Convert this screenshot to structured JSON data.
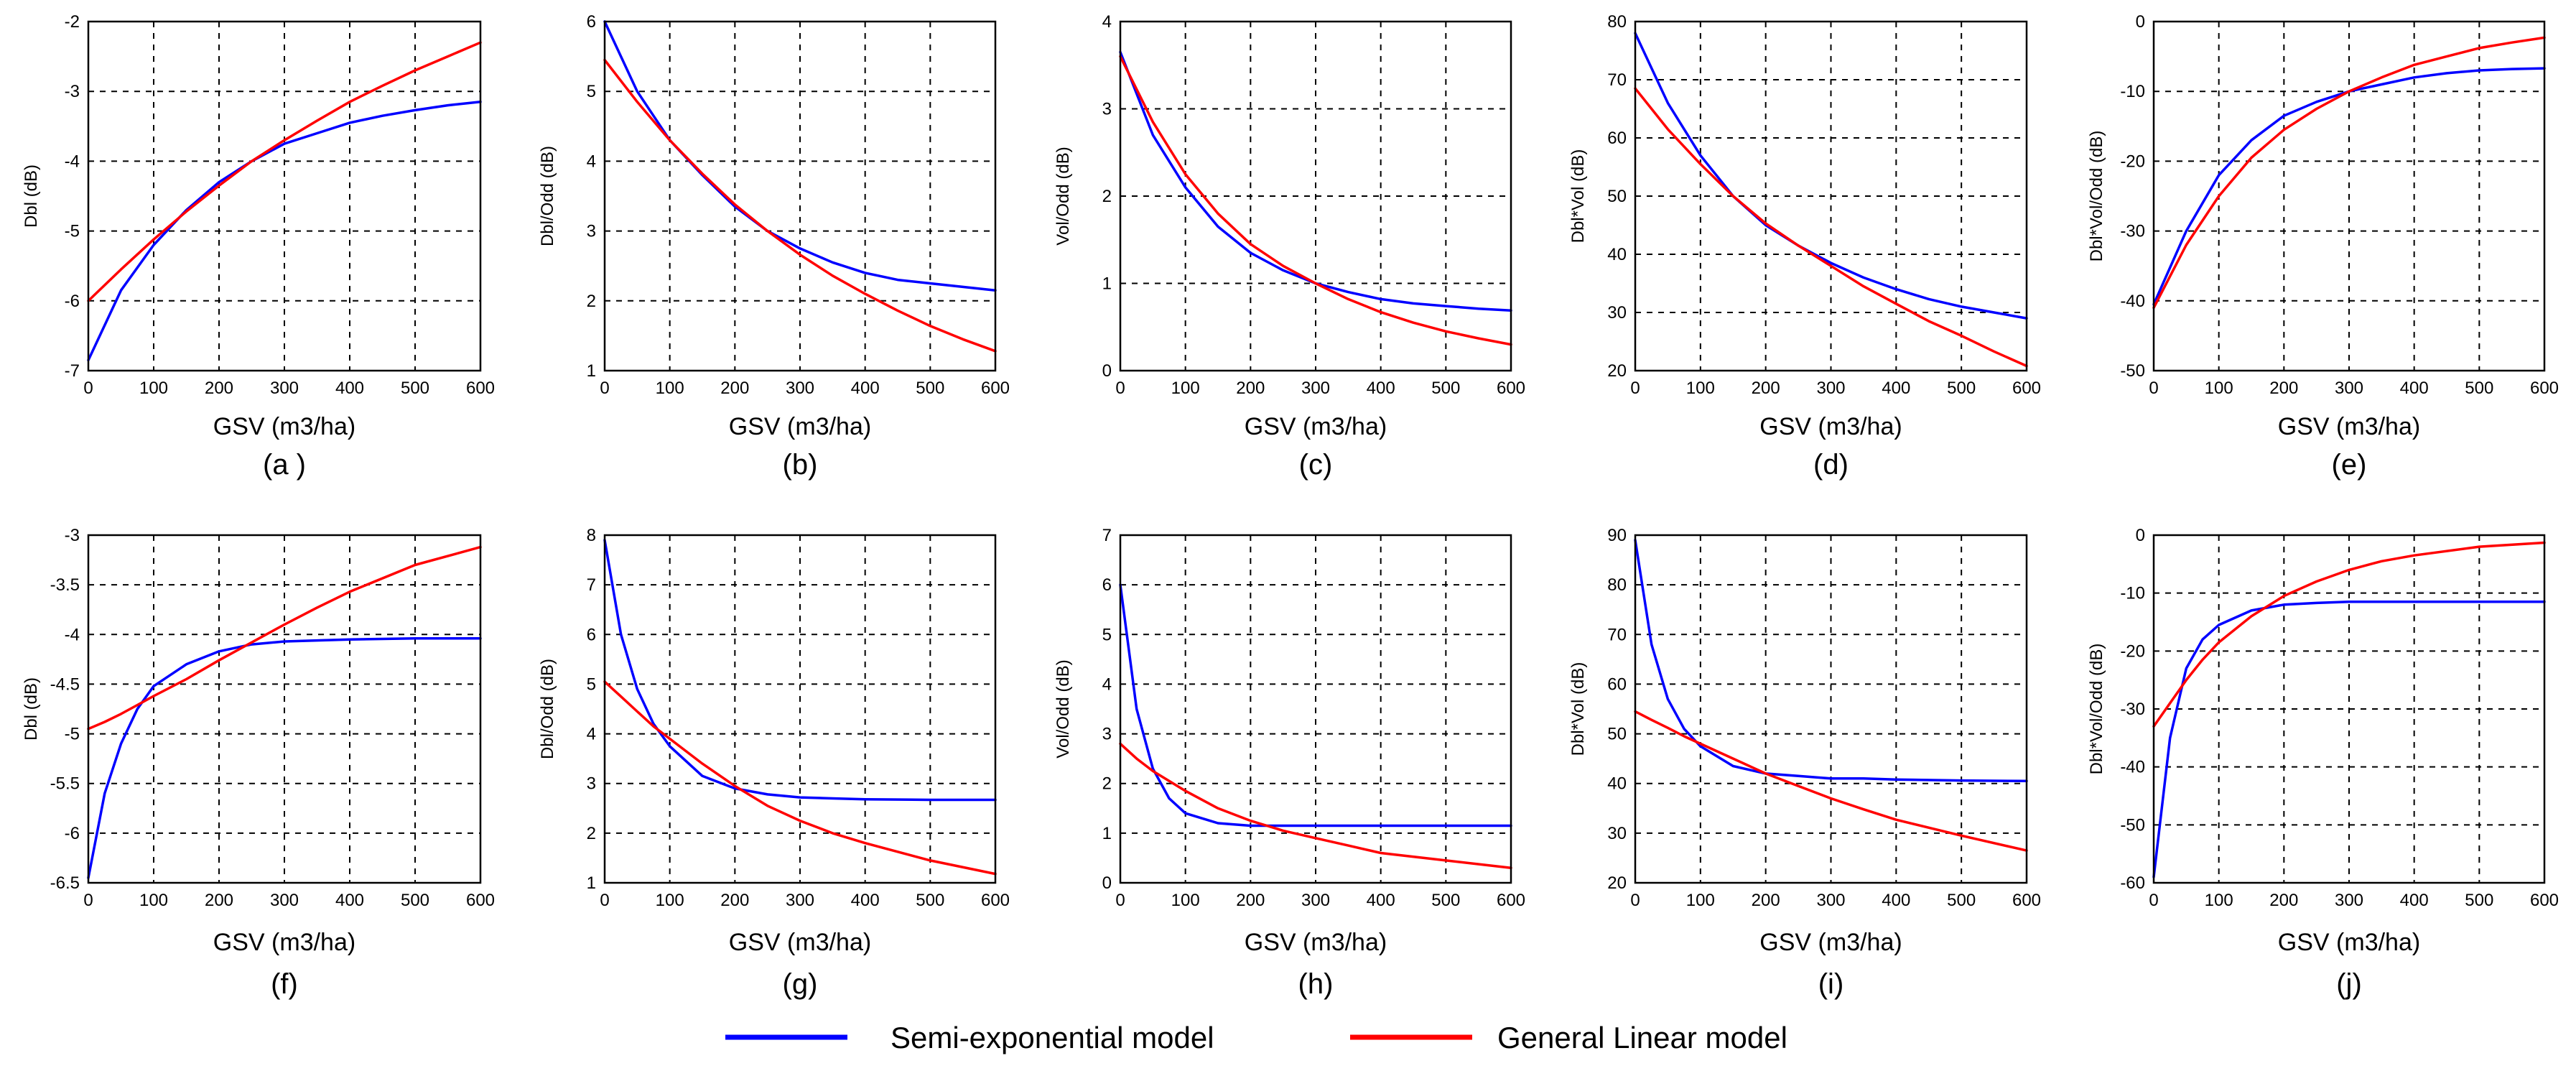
{
  "legend": {
    "semi": "Semi-exponential model",
    "linear": "General  Linear model"
  },
  "colors": {
    "semi": "#0000ff",
    "linear": "#ff0000"
  },
  "chart_data": [
    {
      "type": "line",
      "caption": "(a )",
      "xlabel": "GSV  (m3/ha)",
      "ylabel": "Dbl (dB)",
      "xlim": [
        0,
        600
      ],
      "ylim": [
        -7,
        -2
      ],
      "xticks": [
        0,
        100,
        200,
        300,
        400,
        500,
        600
      ],
      "yticks": [
        -7,
        -6,
        -5,
        -4,
        -3,
        -2
      ],
      "grid": true,
      "x": [
        0,
        50,
        100,
        150,
        200,
        250,
        300,
        350,
        400,
        450,
        500,
        550,
        600
      ],
      "series": [
        {
          "name": "Semi-exponential model",
          "values": [
            -6.85,
            -5.85,
            -5.2,
            -4.7,
            -4.3,
            -4.0,
            -3.75,
            -3.6,
            -3.45,
            -3.35,
            -3.27,
            -3.2,
            -3.15
          ]
        },
        {
          "name": "General  Linear model",
          "values": [
            -6.0,
            -5.55,
            -5.12,
            -4.72,
            -4.35,
            -4.0,
            -3.7,
            -3.42,
            -3.15,
            -2.92,
            -2.7,
            -2.5,
            -2.3
          ]
        }
      ]
    },
    {
      "type": "line",
      "caption": "(b)",
      "xlabel": "GSV  (m3/ha)",
      "ylabel": "Dbl/Odd (dB)",
      "xlim": [
        0,
        600
      ],
      "ylim": [
        1,
        6
      ],
      "xticks": [
        0,
        100,
        200,
        300,
        400,
        500,
        600
      ],
      "yticks": [
        1,
        2,
        3,
        4,
        5,
        6
      ],
      "grid": true,
      "x": [
        0,
        50,
        100,
        150,
        200,
        250,
        300,
        350,
        400,
        450,
        500,
        550,
        600
      ],
      "series": [
        {
          "name": "Semi-exponential model",
          "values": [
            6.0,
            5.0,
            4.3,
            3.8,
            3.35,
            3.0,
            2.75,
            2.55,
            2.4,
            2.3,
            2.25,
            2.2,
            2.15
          ]
        },
        {
          "name": "General  Linear model",
          "values": [
            5.45,
            4.85,
            4.3,
            3.82,
            3.38,
            3.0,
            2.66,
            2.36,
            2.1,
            1.86,
            1.64,
            1.45,
            1.28
          ]
        }
      ]
    },
    {
      "type": "line",
      "caption": "(c)",
      "xlabel": "GSV  (m3/ha)",
      "ylabel": "Vol/Odd (dB)",
      "xlim": [
        0,
        600
      ],
      "ylim": [
        0,
        4
      ],
      "xticks": [
        0,
        100,
        200,
        300,
        400,
        500,
        600
      ],
      "yticks": [
        0,
        1,
        2,
        3,
        4
      ],
      "grid": true,
      "x": [
        0,
        50,
        100,
        150,
        200,
        250,
        300,
        350,
        400,
        450,
        500,
        550,
        600
      ],
      "series": [
        {
          "name": "Semi-exponential model",
          "values": [
            3.65,
            2.7,
            2.1,
            1.65,
            1.35,
            1.15,
            1.0,
            0.9,
            0.82,
            0.77,
            0.74,
            0.71,
            0.69
          ]
        },
        {
          "name": "General  Linear model",
          "values": [
            3.6,
            2.85,
            2.25,
            1.8,
            1.45,
            1.2,
            1.0,
            0.82,
            0.67,
            0.55,
            0.45,
            0.37,
            0.3
          ]
        }
      ]
    },
    {
      "type": "line",
      "caption": "(d)",
      "xlabel": "GSV  (m3/ha)",
      "ylabel": "Dbl*Vol (dB)",
      "xlim": [
        0,
        600
      ],
      "ylim": [
        20,
        80
      ],
      "xticks": [
        0,
        100,
        200,
        300,
        400,
        500,
        600
      ],
      "yticks": [
        20,
        30,
        40,
        50,
        60,
        70,
        80
      ],
      "grid": true,
      "x": [
        0,
        50,
        100,
        150,
        200,
        250,
        300,
        350,
        400,
        450,
        500,
        550,
        600
      ],
      "series": [
        {
          "name": "Semi-exponential model",
          "values": [
            78,
            66,
            57,
            50,
            45,
            41.5,
            38.5,
            36,
            34,
            32.3,
            31,
            30,
            29
          ]
        },
        {
          "name": "General  Linear model",
          "values": [
            68.5,
            61.5,
            55.5,
            50,
            45.3,
            41.5,
            38,
            34.5,
            31.5,
            28.5,
            26,
            23.3,
            20.8
          ]
        }
      ]
    },
    {
      "type": "line",
      "caption": "(e)",
      "xlabel": "GSV  (m3/ha)",
      "ylabel": "Dbl*Vol/Odd (dB)",
      "xlim": [
        0,
        600
      ],
      "ylim": [
        -50,
        0
      ],
      "xticks": [
        0,
        100,
        200,
        300,
        400,
        500,
        600
      ],
      "yticks": [
        -50,
        -40,
        -30,
        -20,
        -10,
        0
      ],
      "grid": true,
      "x": [
        0,
        50,
        100,
        150,
        200,
        250,
        300,
        350,
        400,
        450,
        500,
        550,
        600
      ],
      "series": [
        {
          "name": "Semi-exponential model",
          "values": [
            -40.5,
            -30,
            -22,
            -17,
            -13.5,
            -11.5,
            -10,
            -9,
            -8,
            -7.4,
            -7,
            -6.8,
            -6.7
          ]
        },
        {
          "name": "General  Linear model",
          "values": [
            -41,
            -32,
            -25,
            -19.5,
            -15.5,
            -12.5,
            -10,
            -8,
            -6.2,
            -5,
            -3.8,
            -3,
            -2.3
          ]
        }
      ]
    },
    {
      "type": "line",
      "caption": "(f)",
      "xlabel": "GSV  (m3/ha)",
      "ylabel": "Dbl (dB)",
      "xlim": [
        0,
        600
      ],
      "ylim": [
        -6.5,
        -3
      ],
      "xticks": [
        0,
        100,
        200,
        300,
        400,
        500,
        600
      ],
      "yticks": [
        -6.5,
        -6,
        -5.5,
        -5,
        -4.5,
        -4,
        -3.5,
        -3
      ],
      "grid": true,
      "x": [
        0,
        25,
        50,
        75,
        100,
        150,
        200,
        250,
        300,
        350,
        400,
        500,
        600
      ],
      "series": [
        {
          "name": "Semi-exponential model",
          "values": [
            -6.45,
            -5.6,
            -5.1,
            -4.75,
            -4.52,
            -4.3,
            -4.17,
            -4.1,
            -4.07,
            -4.06,
            -4.05,
            -4.04,
            -4.04
          ]
        },
        {
          "name": "General  Linear model",
          "values": [
            -4.95,
            -4.88,
            -4.8,
            -4.71,
            -4.62,
            -4.45,
            -4.26,
            -4.08,
            -3.9,
            -3.73,
            -3.57,
            -3.3,
            -3.12
          ]
        }
      ]
    },
    {
      "type": "line",
      "caption": "(g)",
      "xlabel": "GSV  (m3/ha)",
      "ylabel": "Dbl/Odd (dB)",
      "xlim": [
        0,
        600
      ],
      "ylim": [
        1,
        8
      ],
      "xticks": [
        0,
        100,
        200,
        300,
        400,
        500,
        600
      ],
      "yticks": [
        1,
        2,
        3,
        4,
        5,
        6,
        7,
        8
      ],
      "grid": true,
      "x": [
        0,
        25,
        50,
        75,
        100,
        150,
        200,
        250,
        300,
        350,
        400,
        500,
        600
      ],
      "series": [
        {
          "name": "Semi-exponential model",
          "values": [
            7.9,
            6.0,
            4.9,
            4.2,
            3.75,
            3.15,
            2.9,
            2.78,
            2.72,
            2.7,
            2.68,
            2.67,
            2.67
          ]
        },
        {
          "name": "General  Linear model",
          "values": [
            5.05,
            4.75,
            4.45,
            4.15,
            3.9,
            3.4,
            2.95,
            2.55,
            2.25,
            2.0,
            1.8,
            1.45,
            1.18
          ]
        }
      ]
    },
    {
      "type": "line",
      "caption": "(h)",
      "xlabel": "GSV  (m3/ha)",
      "ylabel": "Vol/Odd (dB)",
      "xlim": [
        0,
        600
      ],
      "ylim": [
        0,
        7
      ],
      "xticks": [
        0,
        100,
        200,
        300,
        400,
        500,
        600
      ],
      "yticks": [
        0,
        1,
        2,
        3,
        4,
        5,
        6,
        7
      ],
      "grid": true,
      "x": [
        0,
        25,
        50,
        75,
        100,
        150,
        200,
        250,
        300,
        350,
        400,
        500,
        600
      ],
      "series": [
        {
          "name": "Semi-exponential model",
          "values": [
            6.0,
            3.5,
            2.3,
            1.7,
            1.4,
            1.2,
            1.15,
            1.15,
            1.15,
            1.15,
            1.15,
            1.15,
            1.15
          ]
        },
        {
          "name": "General  Linear model",
          "values": [
            2.8,
            2.5,
            2.25,
            2.05,
            1.85,
            1.5,
            1.25,
            1.05,
            0.9,
            0.75,
            0.6,
            0.45,
            0.3
          ]
        }
      ]
    },
    {
      "type": "line",
      "caption": "(i)",
      "xlabel": "GSV  (m3/ha)",
      "ylabel": "Dbl*Vol (dB)",
      "xlim": [
        0,
        600
      ],
      "ylim": [
        20,
        90
      ],
      "xticks": [
        0,
        100,
        200,
        300,
        400,
        500,
        600
      ],
      "yticks": [
        20,
        30,
        40,
        50,
        60,
        70,
        80,
        90
      ],
      "grid": true,
      "x": [
        0,
        25,
        50,
        75,
        100,
        150,
        200,
        250,
        300,
        350,
        400,
        500,
        600
      ],
      "series": [
        {
          "name": "Semi-exponential model",
          "values": [
            89,
            68,
            57,
            51,
            47.5,
            43.5,
            42,
            41.5,
            41,
            41,
            40.8,
            40.6,
            40.5
          ]
        },
        {
          "name": "General  Linear model",
          "values": [
            54.5,
            52.8,
            51.2,
            49.5,
            48,
            45,
            42,
            39.5,
            37,
            34.8,
            32.7,
            29.5,
            26.5
          ]
        }
      ]
    },
    {
      "type": "line",
      "caption": "(j)",
      "xlabel": "GSV  (m3/ha)",
      "ylabel": "Dbl*Vol/Odd (dB)",
      "xlim": [
        0,
        600
      ],
      "ylim": [
        -60,
        0
      ],
      "xticks": [
        0,
        100,
        200,
        300,
        400,
        500,
        600
      ],
      "yticks": [
        -60,
        -50,
        -40,
        -30,
        -20,
        -10,
        0
      ],
      "grid": true,
      "x": [
        0,
        25,
        50,
        75,
        100,
        150,
        200,
        250,
        300,
        350,
        400,
        500,
        600
      ],
      "series": [
        {
          "name": "Semi-exponential model",
          "values": [
            -59,
            -35,
            -23,
            -18,
            -15.5,
            -13,
            -12,
            -11.7,
            -11.5,
            -11.5,
            -11.5,
            -11.5,
            -11.5
          ]
        },
        {
          "name": "General  Linear model",
          "values": [
            -33,
            -29,
            -25,
            -21.5,
            -18.5,
            -14,
            -10.5,
            -8,
            -6,
            -4.5,
            -3.5,
            -2,
            -1.3
          ]
        }
      ]
    }
  ]
}
